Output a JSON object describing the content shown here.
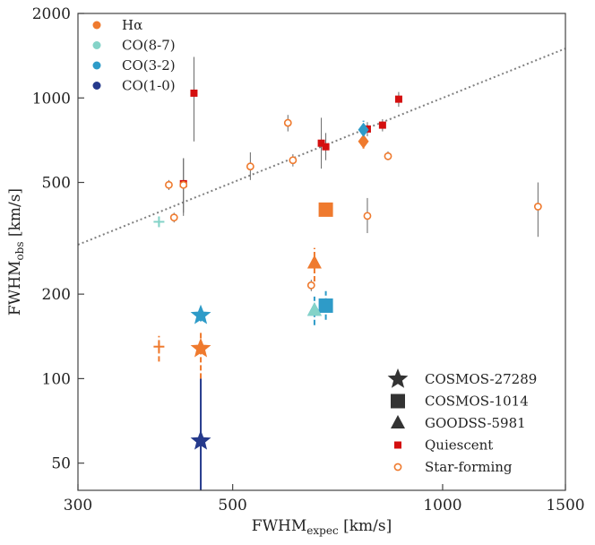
{
  "chart_data": {
    "type": "scatter",
    "title": "",
    "xlabel": {
      "main": "FWHM",
      "sub": "expec",
      "unit": " [km/s]"
    },
    "ylabel": {
      "main": "FWHM",
      "sub": "obs",
      "unit": " [km/s]"
    },
    "xscale": "log",
    "yscale": "log",
    "xlim": [
      300,
      1500
    ],
    "ylim": [
      40,
      2000
    ],
    "xticks": [
      300,
      500,
      1000,
      1500
    ],
    "xtick_labels": [
      "300",
      "500",
      "1000",
      "1500"
    ],
    "yticks": [
      50,
      100,
      200,
      500,
      1000,
      2000
    ],
    "ytick_labels": [
      "50",
      "100",
      "200",
      "500",
      "1000",
      "2000"
    ],
    "grid": false,
    "colors": {
      "halpha": "#ef7a2e",
      "co87": "#84d3c8",
      "co32": "#2e9bc8",
      "co10": "#253a8c",
      "quiescent": "#d40f0f",
      "dark": "#333333",
      "errorbar": "#666666"
    },
    "legend_lines": {
      "position": "top-left",
      "entries": [
        {
          "label": "Hα",
          "color": "#ef7a2e"
        },
        {
          "label": "CO(8-7)",
          "color": "#84d3c8"
        },
        {
          "label": "CO(3-2)",
          "color": "#2e9bc8"
        },
        {
          "label": "CO(1-0)",
          "color": "#253a8c"
        }
      ]
    },
    "legend_markers": {
      "position": "bottom-right",
      "entries": [
        {
          "label": "COSMOS-27289",
          "marker": "star"
        },
        {
          "label": "COSMOS-1014",
          "marker": "square"
        },
        {
          "label": "GOODSS-5981",
          "marker": "triangle"
        },
        {
          "label": "Quiescent",
          "marker": "small-square"
        },
        {
          "label": "Star-forming",
          "marker": "open-circle"
        }
      ]
    },
    "one_to_one_line": {
      "x": [
        300,
        1500
      ],
      "y": [
        300,
        1500
      ],
      "style": "dotted"
    },
    "quiescent": [
      {
        "x": 440,
        "y": 1040,
        "ylo": 700,
        "yhi": 1400
      },
      {
        "x": 425,
        "y": 495,
        "ylo": 390,
        "yhi": 610
      },
      {
        "x": 670,
        "y": 690,
        "ylo": 560,
        "yhi": 850
      },
      {
        "x": 680,
        "y": 670,
        "ylo": 600,
        "yhi": 750
      },
      {
        "x": 780,
        "y": 775,
        "ylo": 730,
        "yhi": 820
      },
      {
        "x": 820,
        "y": 800,
        "ylo": 760,
        "yhi": 840
      },
      {
        "x": 865,
        "y": 990,
        "ylo": 930,
        "yhi": 1050
      }
    ],
    "star_forming": [
      {
        "x": 405,
        "y": 490,
        "ylo": 470,
        "yhi": 510
      },
      {
        "x": 412,
        "y": 375,
        "ylo": 360,
        "yhi": 390
      },
      {
        "x": 425,
        "y": 490,
        "ylo": 380,
        "yhi": 610
      },
      {
        "x": 530,
        "y": 570,
        "ylo": 510,
        "yhi": 640
      },
      {
        "x": 600,
        "y": 815,
        "ylo": 760,
        "yhi": 870
      },
      {
        "x": 610,
        "y": 600,
        "ylo": 570,
        "yhi": 630
      },
      {
        "x": 648,
        "y": 215,
        "ylo": 205,
        "yhi": 225
      },
      {
        "x": 780,
        "y": 380,
        "ylo": 330,
        "yhi": 440
      },
      {
        "x": 835,
        "y": 620,
        "ylo": 600,
        "yhi": 645
      },
      {
        "x": 1370,
        "y": 410,
        "ylo": 320,
        "yhi": 500
      }
    ],
    "targets": [
      {
        "object": "COSMOS-27289",
        "line": "CO(1-0)",
        "marker": "star",
        "color": "#253a8c",
        "x": 450,
        "y": 60,
        "ylo": 40,
        "yhi": 100
      },
      {
        "object": "COSMOS-27289",
        "line": "Hα",
        "marker": "star",
        "color": "#ef7a2e",
        "x": 450,
        "y": 128,
        "ylo": 100,
        "yhi": 148
      },
      {
        "object": "COSMOS-27289",
        "line": "CO(3-2)",
        "marker": "star",
        "color": "#2e9bc8",
        "x": 450,
        "y": 168,
        "ylo": 160,
        "yhi": 176
      },
      {
        "object": "COSMOS-1014",
        "line": "Hα",
        "marker": "square",
        "color": "#ef7a2e",
        "x": 680,
        "y": 400,
        "ylo": 380,
        "yhi": 420
      },
      {
        "object": "COSMOS-1014",
        "line": "CO(3-2)",
        "marker": "square",
        "color": "#2e9bc8",
        "x": 680,
        "y": 182,
        "ylo": 162,
        "yhi": 205
      },
      {
        "object": "GOODSS-5981",
        "line": "Hα",
        "marker": "triangle",
        "color": "#ef7a2e",
        "x": 655,
        "y": 258,
        "ylo": 222,
        "yhi": 292
      },
      {
        "object": "GOODSS-5981",
        "line": "CO(3-2)",
        "marker": "triangle",
        "color": "#2e9bc8",
        "x": 655,
        "y": 175,
        "ylo": 155,
        "yhi": 196
      },
      {
        "object": "GOODSS-5981",
        "line": "CO(8-7)",
        "marker": "triangle",
        "color": "#84d3c8",
        "x": 655,
        "y": 175,
        "ylo": 170,
        "yhi": 180
      },
      {
        "object": "other",
        "line": "Hα",
        "marker": "diamond",
        "color": "#ef7a2e",
        "x": 770,
        "y": 700,
        "ylo": 660,
        "yhi": 740
      },
      {
        "object": "other",
        "line": "CO(3-2)",
        "marker": "diamond",
        "color": "#2e9bc8",
        "x": 770,
        "y": 770,
        "ylo": 720,
        "yhi": 830
      },
      {
        "object": "other",
        "line": "CO(8-7)",
        "marker": "plus",
        "color": "#84d3c8",
        "x": 392,
        "y": 362,
        "ylo": 348,
        "yhi": 376
      },
      {
        "object": "other",
        "line": "Hα",
        "marker": "plus",
        "color": "#ef7a2e",
        "x": 392,
        "y": 130,
        "ylo": 115,
        "yhi": 142
      }
    ]
  }
}
